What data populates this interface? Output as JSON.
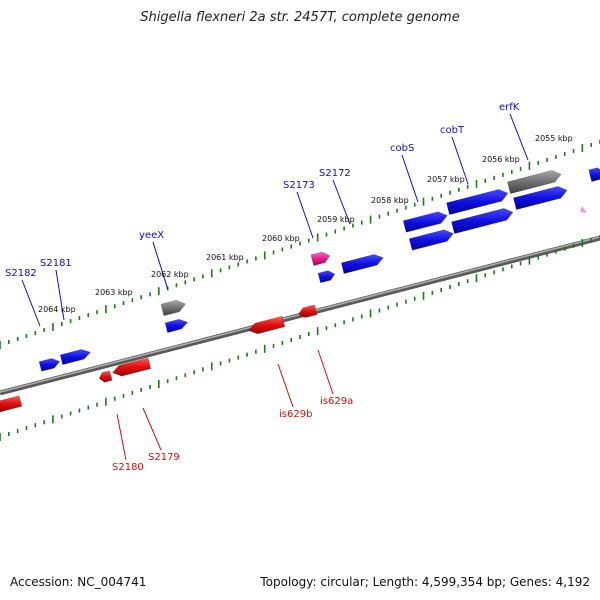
{
  "title": "Shigella flexneri 2a str. 2457T, complete genome",
  "footer": {
    "accession": "Accession: NC_004741",
    "summary": "Topology: circular; Length: 4,599,354 bp; Genes: 4,192"
  },
  "colors": {
    "forward_gene": "#1010e0",
    "reverse_gene": "#e01010",
    "pseudo_gene": "#707070",
    "misc_gene": "#e0208a",
    "tick": "#1a7a1a",
    "backbone": "#808080",
    "forward_label": "#1010c0",
    "reverse_label": "#d01010"
  },
  "scale_labels": [
    {
      "text": "2064 kbp"
    },
    {
      "text": "2063 kbp"
    },
    {
      "text": "2062 kbp"
    },
    {
      "text": "2061 kbp"
    },
    {
      "text": "2060 kbp"
    },
    {
      "text": "2059 kbp"
    },
    {
      "text": "2058 kbp"
    },
    {
      "text": "2057 kbp"
    },
    {
      "text": "2056 kbp"
    },
    {
      "text": "2055 kbp"
    }
  ],
  "forward_labels": [
    {
      "text": "S2182"
    },
    {
      "text": "S2181"
    },
    {
      "text": "yeeX"
    },
    {
      "text": "S2173"
    },
    {
      "text": "S2172"
    },
    {
      "text": "cobS"
    },
    {
      "text": "cobT"
    },
    {
      "text": "erfK"
    }
  ],
  "reverse_labels": [
    {
      "text": "S2180"
    },
    {
      "text": "S2179"
    },
    {
      "text": "is629b"
    },
    {
      "text": "is629a"
    }
  ]
}
